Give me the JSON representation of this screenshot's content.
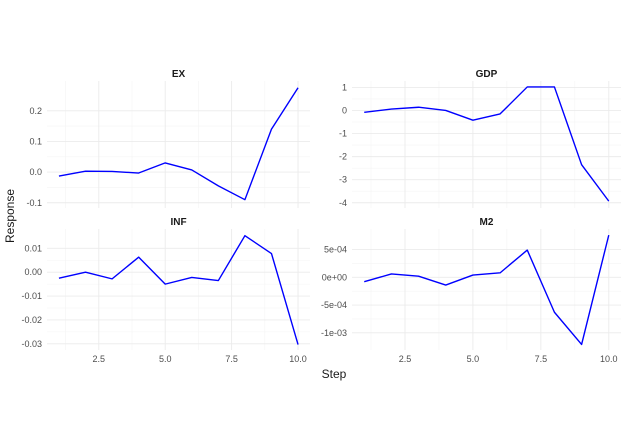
{
  "chart_data": {
    "type": "line",
    "xlabel": "Step",
    "ylabel": "Response",
    "x": [
      1,
      2,
      3,
      4,
      5,
      6,
      7,
      8,
      9,
      10
    ],
    "x_ticks": [
      "2.5",
      "5.0",
      "7.5",
      "10.0"
    ],
    "grid": true,
    "line_color": "#0000ff",
    "panels": [
      {
        "title": "EX",
        "values": [
          -0.013,
          0.003,
          0.002,
          -0.003,
          0.03,
          0.007,
          -0.045,
          -0.09,
          0.14,
          0.275
        ],
        "ylim": [
          -0.1,
          0.28
        ],
        "y_ticks": [
          -0.1,
          0.0,
          0.1,
          0.2
        ],
        "y_tick_labels": [
          "-0.1",
          "0.0",
          "0.1",
          "0.2"
        ]
      },
      {
        "title": "GDP",
        "values": [
          -0.08,
          0.06,
          0.14,
          0.0,
          -0.42,
          -0.15,
          1.02,
          1.02,
          -2.35,
          -3.93
        ],
        "ylim": [
          -4.0,
          1.05
        ],
        "y_ticks": [
          -4,
          -3,
          -2,
          -1,
          0,
          1
        ],
        "y_tick_labels": [
          "-4",
          "-3",
          "-2",
          "-1",
          "0",
          "1"
        ]
      },
      {
        "title": "INF",
        "values": [
          -0.0025,
          0.0,
          -0.0028,
          0.0063,
          -0.005,
          -0.0022,
          -0.0035,
          0.0153,
          0.0078,
          -0.0303
        ],
        "ylim": [
          -0.0305,
          0.016
        ],
        "y_ticks": [
          -0.03,
          -0.02,
          -0.01,
          0.0,
          0.01
        ],
        "y_tick_labels": [
          "-0.03",
          "-0.02",
          "-0.01",
          "0.00",
          "0.01"
        ]
      },
      {
        "title": "M2",
        "values": [
          -8e-05,
          6e-05,
          2e-05,
          -0.00014,
          4e-05,
          8e-05,
          0.00049,
          -0.00063,
          -0.00121,
          0.00076
        ],
        "ylim": [
          -0.00122,
          0.00078
        ],
        "y_ticks": [
          -0.001,
          -0.0005,
          0.0,
          0.0005
        ],
        "y_tick_labels": [
          "-1e-03",
          "-5e-04",
          "0e+00",
          "5e-04"
        ]
      }
    ]
  }
}
